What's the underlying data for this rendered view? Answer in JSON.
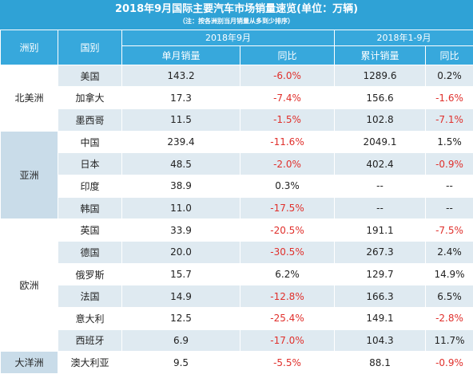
{
  "title": "2018年9月国际主要汽车市场销量速览(单位：万辆)",
  "note": "（注：按各洲别当月销量从多到少排序）",
  "header": {
    "continent": "洲别",
    "country": "国别",
    "period_month": "2018年9月",
    "period_ytd": "2018年1-9月",
    "monthly_sales": "单月销量",
    "yoy": "同比",
    "cumulative_sales": "累计销量",
    "yoy2": "同比"
  },
  "groups": [
    {
      "continent": "北美洲",
      "rows": [
        {
          "country": "美国",
          "month": "143.2",
          "month_yoy": "-6.0%",
          "ytd": "1289.6",
          "ytd_yoy": "0.2%"
        },
        {
          "country": "加拿大",
          "month": "17.3",
          "month_yoy": "-7.4%",
          "ytd": "156.6",
          "ytd_yoy": "-1.6%"
        },
        {
          "country": "墨西哥",
          "month": "11.5",
          "month_yoy": "-1.5%",
          "ytd": "102.8",
          "ytd_yoy": "-7.1%"
        }
      ]
    },
    {
      "continent": "亚洲",
      "rows": [
        {
          "country": "中国",
          "month": "239.4",
          "month_yoy": "-11.6%",
          "ytd": "2049.1",
          "ytd_yoy": "1.5%"
        },
        {
          "country": "日本",
          "month": "48.5",
          "month_yoy": "-2.0%",
          "ytd": "402.4",
          "ytd_yoy": "-0.9%"
        },
        {
          "country": "印度",
          "month": "38.9",
          "month_yoy": "0.3%",
          "ytd": "--",
          "ytd_yoy": "--"
        },
        {
          "country": "韩国",
          "month": "11.0",
          "month_yoy": "-17.5%",
          "ytd": "--",
          "ytd_yoy": "--"
        }
      ]
    },
    {
      "continent": "欧洲",
      "rows": [
        {
          "country": "英国",
          "month": "33.9",
          "month_yoy": "-20.5%",
          "ytd": "191.1",
          "ytd_yoy": "-7.5%"
        },
        {
          "country": "德国",
          "month": "20.0",
          "month_yoy": "-30.5%",
          "ytd": "267.3",
          "ytd_yoy": "2.4%"
        },
        {
          "country": "俄罗斯",
          "month": "15.7",
          "month_yoy": "6.2%",
          "ytd": "129.7",
          "ytd_yoy": "14.9%"
        },
        {
          "country": "法国",
          "month": "14.9",
          "month_yoy": "-12.8%",
          "ytd": "166.3",
          "ytd_yoy": "6.5%"
        },
        {
          "country": "意大利",
          "month": "12.5",
          "month_yoy": "-25.4%",
          "ytd": "149.1",
          "ytd_yoy": "-2.8%"
        },
        {
          "country": "西班牙",
          "month": "6.9",
          "month_yoy": "-17.0%",
          "ytd": "104.3",
          "ytd_yoy": "11.7%"
        }
      ]
    },
    {
      "continent": "大洋洲",
      "rows": [
        {
          "country": "澳大利亚",
          "month": "9.5",
          "month_yoy": "-5.5%",
          "ytd": "88.1",
          "ytd_yoy": "-0.9%"
        }
      ]
    }
  ],
  "colors": {
    "header_blue": "#37a8dc",
    "title_blue": "#2fa2d6",
    "negative_red": "#e0302c",
    "stripe": "#dfeaf1"
  }
}
